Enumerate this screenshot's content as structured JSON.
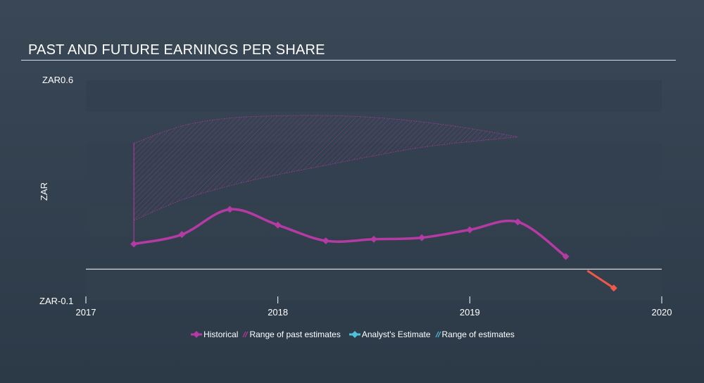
{
  "title": "PAST AND FUTURE EARNINGS PER SHARE",
  "colors": {
    "historical": "#b63aa4",
    "past_range": "#b63aa4",
    "forecast_tail": "#f0584a",
    "analyst_estimate": "#4fc0de",
    "future_range": "#4fc0de",
    "zero_line": "#ffffff",
    "band": "#33404f"
  },
  "legend": {
    "historical": "Historical",
    "past_range": "Range of past estimates",
    "analyst_estimate": "Analyst's Estimate",
    "future_range": "Range of estimates"
  },
  "chart_data": {
    "type": "line",
    "title": "PAST AND FUTURE EARNINGS PER SHARE",
    "ylabel": "ZAR",
    "y_tick_labels": [
      "ZAR0.6",
      "ZAR-0.1"
    ],
    "x_tick_labels": [
      "2017",
      "2018",
      "2019",
      "2020"
    ],
    "xlim": [
      2017.0,
      2020.0
    ],
    "ylim": [
      -0.1,
      0.6
    ],
    "grid": "horizontal bands",
    "legend_position": "bottom",
    "series": [
      {
        "name": "Historical",
        "x": [
          2017.25,
          2017.5,
          2017.75,
          2018.0,
          2018.25,
          2018.5,
          2018.75,
          2019.0,
          2019.25,
          2019.5,
          2019.75
        ],
        "y": [
          0.08,
          0.11,
          0.19,
          0.14,
          0.09,
          0.095,
          0.1,
          0.125,
          0.15,
          0.04,
          -0.06
        ]
      }
    ],
    "range_of_past_estimates": {
      "x": [
        2017.25,
        2017.5,
        2017.75,
        2018.0,
        2018.25,
        2018.5,
        2018.75,
        2019.0,
        2019.25
      ],
      "upper": [
        0.4,
        0.455,
        0.48,
        0.487,
        0.488,
        0.482,
        0.468,
        0.447,
        0.42
      ],
      "lower": [
        0.155,
        0.22,
        0.265,
        0.3,
        0.33,
        0.36,
        0.387,
        0.405,
        0.42
      ]
    }
  }
}
